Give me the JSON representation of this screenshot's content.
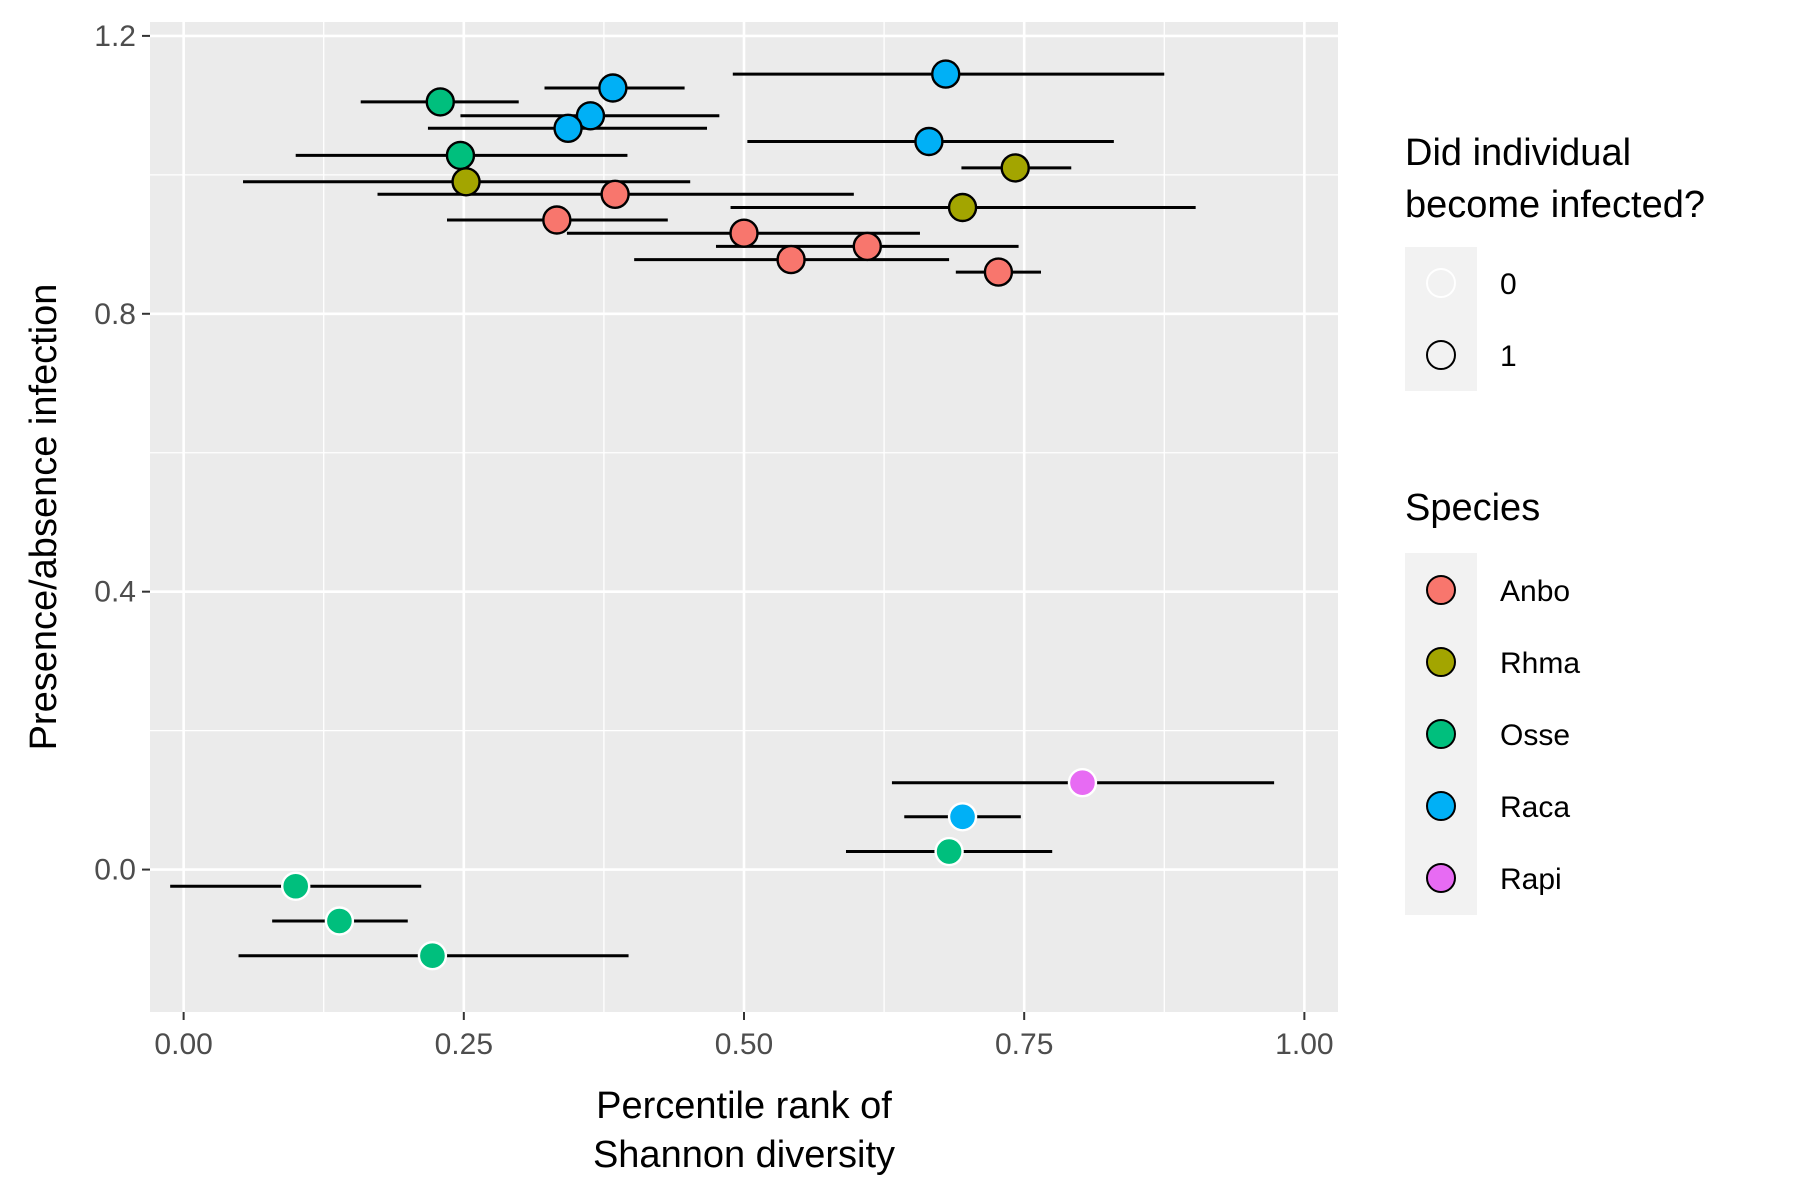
{
  "chart_data": {
    "type": "scatter",
    "title": "",
    "xlabel_lines": [
      "Percentile rank of",
      "Shannon diversity"
    ],
    "ylabel": "Presence/absence infection",
    "xlim": [
      -0.03,
      1.03
    ],
    "ylim": [
      -0.205,
      1.22
    ],
    "x_ticks": [
      0.0,
      0.25,
      0.5,
      0.75,
      1.0
    ],
    "x_tick_labels": [
      "0.00",
      "0.25",
      "0.50",
      "0.75",
      "1.00"
    ],
    "y_ticks": [
      0.0,
      0.4,
      0.8,
      1.2
    ],
    "y_tick_labels": [
      "0.0",
      "0.4",
      "0.8",
      "1.2"
    ],
    "grid": true,
    "legend_placement": "right",
    "legend_infected": {
      "title_lines": [
        "Did individual",
        "become infected?"
      ],
      "entries": [
        {
          "label": "0",
          "value": 0
        },
        {
          "label": "1",
          "value": 1
        }
      ]
    },
    "legend_species": {
      "title": "Species",
      "entries": [
        {
          "label": "Anbo",
          "color": "#F8766D"
        },
        {
          "label": "Rhma",
          "color": "#A3A500"
        },
        {
          "label": "Osse",
          "color": "#00BF7D"
        },
        {
          "label": "Raca",
          "color": "#00B0F6"
        },
        {
          "label": "Rapi",
          "color": "#E76BF3"
        }
      ]
    },
    "points": [
      {
        "species": "Raca",
        "infected": 1,
        "x": 0.68,
        "y": 1.145,
        "xmin": 0.49,
        "xmax": 0.875
      },
      {
        "species": "Raca",
        "infected": 1,
        "x": 0.383,
        "y": 1.125,
        "xmin": 0.322,
        "xmax": 0.447
      },
      {
        "species": "Osse",
        "infected": 1,
        "x": 0.229,
        "y": 1.105,
        "xmin": 0.158,
        "xmax": 0.299
      },
      {
        "species": "Raca",
        "infected": 1,
        "x": 0.363,
        "y": 1.085,
        "xmin": 0.247,
        "xmax": 0.478
      },
      {
        "species": "Raca",
        "infected": 1,
        "x": 0.343,
        "y": 1.067,
        "xmin": 0.218,
        "xmax": 0.467
      },
      {
        "species": "Raca",
        "infected": 1,
        "x": 0.665,
        "y": 1.048,
        "xmin": 0.503,
        "xmax": 0.83
      },
      {
        "species": "Osse",
        "infected": 1,
        "x": 0.247,
        "y": 1.028,
        "xmin": 0.1,
        "xmax": 0.396
      },
      {
        "species": "Rhma",
        "infected": 1,
        "x": 0.742,
        "y": 1.01,
        "xmin": 0.694,
        "xmax": 0.792
      },
      {
        "species": "Rhma",
        "infected": 1,
        "x": 0.252,
        "y": 0.99,
        "xmin": 0.053,
        "xmax": 0.452
      },
      {
        "species": "Anbo",
        "infected": 1,
        "x": 0.385,
        "y": 0.972,
        "xmin": 0.173,
        "xmax": 0.598
      },
      {
        "species": "Rhma",
        "infected": 1,
        "x": 0.695,
        "y": 0.953,
        "xmin": 0.488,
        "xmax": 0.903
      },
      {
        "species": "Anbo",
        "infected": 1,
        "x": 0.333,
        "y": 0.935,
        "xmin": 0.235,
        "xmax": 0.432
      },
      {
        "species": "Anbo",
        "infected": 1,
        "x": 0.5,
        "y": 0.916,
        "xmin": 0.342,
        "xmax": 0.657
      },
      {
        "species": "Anbo",
        "infected": 1,
        "x": 0.61,
        "y": 0.897,
        "xmin": 0.475,
        "xmax": 0.745
      },
      {
        "species": "Anbo",
        "infected": 1,
        "x": 0.542,
        "y": 0.878,
        "xmin": 0.402,
        "xmax": 0.683
      },
      {
        "species": "Anbo",
        "infected": 1,
        "x": 0.727,
        "y": 0.86,
        "xmin": 0.689,
        "xmax": 0.765
      },
      {
        "species": "Rapi",
        "infected": 0,
        "x": 0.802,
        "y": 0.125,
        "xmin": 0.632,
        "xmax": 0.973
      },
      {
        "species": "Raca",
        "infected": 0,
        "x": 0.695,
        "y": 0.076,
        "xmin": 0.643,
        "xmax": 0.747
      },
      {
        "species": "Osse",
        "infected": 0,
        "x": 0.683,
        "y": 0.026,
        "xmin": 0.591,
        "xmax": 0.775
      },
      {
        "species": "Osse",
        "infected": 0,
        "x": 0.1,
        "y": -0.024,
        "xmin": -0.012,
        "xmax": 0.212
      },
      {
        "species": "Osse",
        "infected": 0,
        "x": 0.139,
        "y": -0.074,
        "xmin": 0.079,
        "xmax": 0.2
      },
      {
        "species": "Osse",
        "infected": 0,
        "x": 0.222,
        "y": -0.124,
        "xmin": 0.049,
        "xmax": 0.397
      }
    ]
  }
}
